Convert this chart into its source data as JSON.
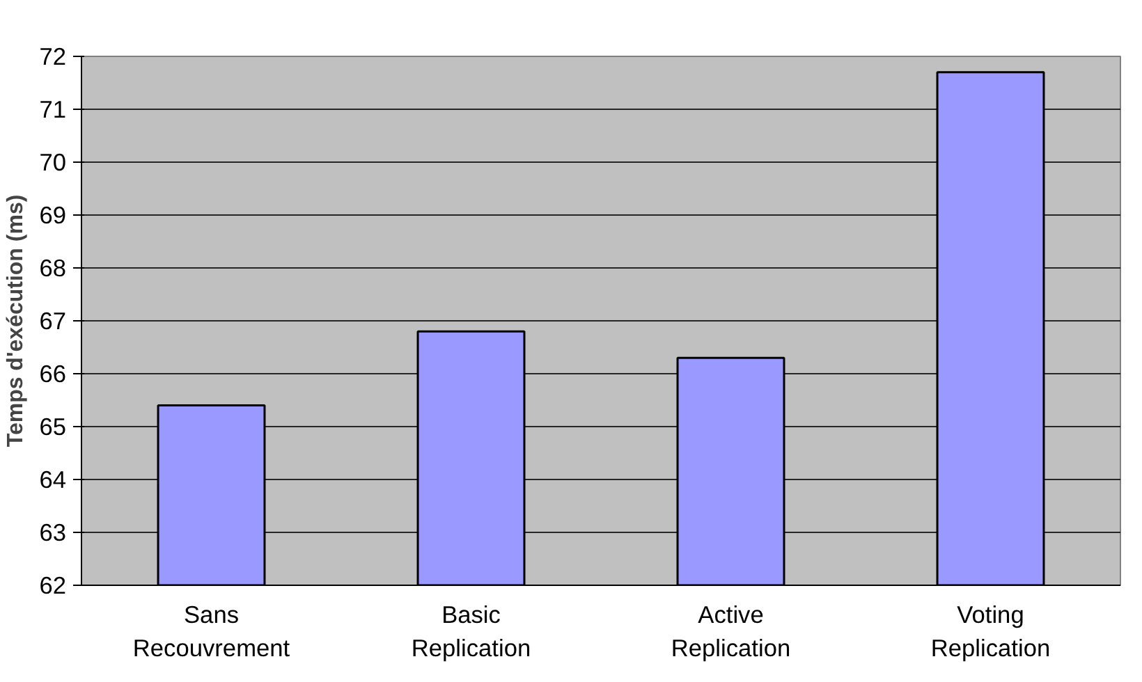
{
  "chart_data": {
    "type": "bar",
    "ylabel": "Temps d'exécution (ms)",
    "categories": [
      "Sans\nRecouvrement",
      "Basic\nReplication",
      "Active\nReplication",
      "Voting\nReplication"
    ],
    "values": [
      65.4,
      66.8,
      66.3,
      71.7
    ],
    "color": "#9999ff",
    "ylim": [
      62,
      72
    ],
    "yticks": [
      62,
      63,
      64,
      65,
      66,
      67,
      68,
      69,
      70,
      71,
      72
    ],
    "grid": "y"
  }
}
